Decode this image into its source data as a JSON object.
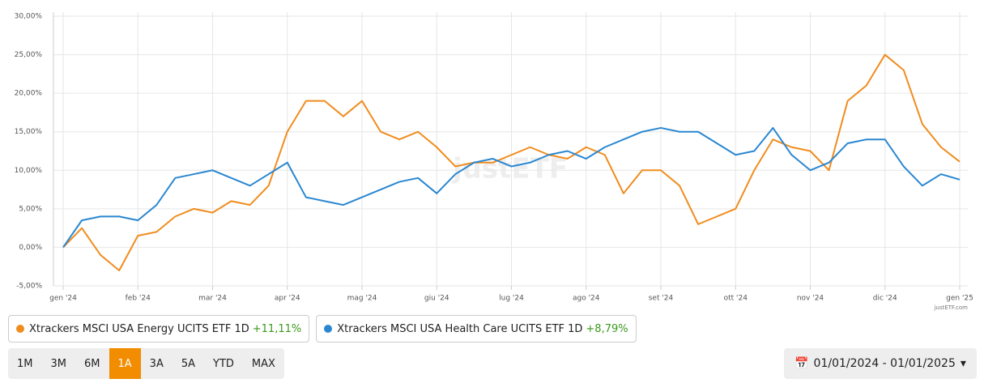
{
  "chart_data": {
    "type": "line",
    "categories": [
      "gen '24",
      null,
      null,
      null,
      "feb '24",
      null,
      null,
      null,
      "mar '24",
      null,
      null,
      null,
      "apr '24",
      null,
      null,
      null,
      "mag '24",
      null,
      null,
      null,
      "giu '24",
      null,
      null,
      null,
      "lug '24",
      null,
      null,
      null,
      "ago '24",
      null,
      null,
      null,
      "set '24",
      null,
      null,
      null,
      "ott '24",
      null,
      null,
      null,
      "nov '24",
      null,
      null,
      null,
      "dic '24",
      null,
      null,
      null,
      "gen '25"
    ],
    "series": [
      {
        "name": "Xtrackers MSCI USA Energy UCITS ETF 1D",
        "return_label": "+11,11%",
        "color": "#f08c1e",
        "values": [
          0,
          2.5,
          -1,
          -3,
          1.5,
          2,
          4,
          5,
          4.5,
          6,
          5.5,
          8,
          15,
          19,
          19,
          17,
          19,
          15,
          14,
          15,
          13,
          10.5,
          11,
          11,
          12,
          13,
          12,
          11.5,
          13,
          12,
          7,
          10,
          10,
          8,
          3,
          4,
          5,
          10,
          14,
          13,
          12.5,
          10,
          19,
          21,
          25,
          23,
          16,
          13,
          11.11
        ]
      },
      {
        "name": "Xtrackers MSCI USA Health Care UCITS ETF 1D",
        "return_label": "+8,79%",
        "color": "#2a87d0",
        "values": [
          0,
          3.5,
          4,
          4,
          3.5,
          5.5,
          9,
          9.5,
          10,
          9,
          8,
          9.5,
          11,
          6.5,
          6,
          5.5,
          6.5,
          7.5,
          8.5,
          9,
          7,
          9.5,
          11,
          11.5,
          10.5,
          11,
          12,
          12.5,
          11.5,
          13,
          14,
          15,
          15.5,
          15,
          15,
          13.5,
          12,
          12.5,
          15.5,
          12,
          10,
          11,
          13.5,
          14,
          14,
          10.5,
          8,
          9.5,
          8.79
        ]
      }
    ],
    "ylim": [
      -5,
      30
    ],
    "yticks": [
      {
        "value": -5,
        "label": "-5,00%"
      },
      {
        "value": 0,
        "label": "0,00%"
      },
      {
        "value": 5,
        "label": "5,00%"
      },
      {
        "value": 10,
        "label": "10,00%"
      },
      {
        "value": 15,
        "label": "15,00%"
      },
      {
        "value": 20,
        "label": "20,00%"
      },
      {
        "value": 25,
        "label": "25,00%"
      },
      {
        "value": 30,
        "label": "30,00%"
      }
    ],
    "grid": true,
    "source": "justETF.com",
    "watermark": "justETF"
  },
  "controls": {
    "periods": [
      "1M",
      "3M",
      "6M",
      "1A",
      "3A",
      "5A",
      "YTD",
      "MAX"
    ],
    "active": "1A",
    "date_range": "01/01/2024 - 01/01/2025"
  }
}
